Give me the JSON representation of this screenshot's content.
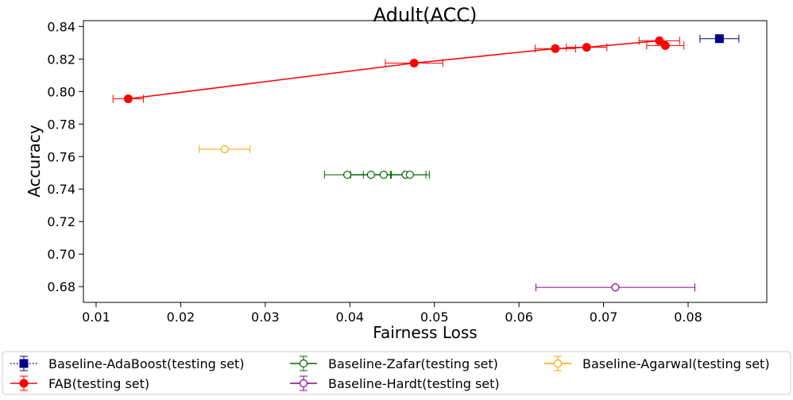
{
  "chart_data": {
    "type": "scatter",
    "title": "Adult(ACC)",
    "xlabel": "Fairness Loss",
    "ylabel": "Accuracy",
    "xlim": [
      0.0085,
      0.0893
    ],
    "ylim": [
      0.6703,
      0.8436
    ],
    "xticks": [
      0.01,
      0.02,
      0.03,
      0.04,
      0.05,
      0.06,
      0.07,
      0.08
    ],
    "xtick_labels": [
      "0.01",
      "0.02",
      "0.03",
      "0.04",
      "0.05",
      "0.06",
      "0.07",
      "0.08"
    ],
    "yticks": [
      0.68,
      0.7,
      0.72,
      0.74,
      0.76,
      0.78,
      0.8,
      0.82,
      0.84
    ],
    "ytick_labels": [
      "0.68",
      "0.70",
      "0.72",
      "0.74",
      "0.76",
      "0.78",
      "0.80",
      "0.82",
      "0.84"
    ],
    "grid": false,
    "legend_position": "below the plot, 3 columns",
    "series": [
      {
        "name": "Baseline-AdaBoost(testing set)",
        "color": "#00008b",
        "marker": "square-filled",
        "line": "dotted",
        "points": [
          {
            "x": 0.0837,
            "y": 0.8325,
            "xerr": 0.0023,
            "yerr": 0.001
          }
        ]
      },
      {
        "name": "FAB(testing set)",
        "color": "#ff0000",
        "marker": "circle-filled",
        "line": "solid",
        "points": [
          {
            "x": 0.0138,
            "y": 0.7955,
            "xerr": 0.0018,
            "yerr": 0.001
          },
          {
            "x": 0.0476,
            "y": 0.8175,
            "xerr": 0.0034,
            "yerr": 0.001
          },
          {
            "x": 0.0643,
            "y": 0.8264,
            "xerr": 0.0024,
            "yerr": 0.001
          },
          {
            "x": 0.068,
            "y": 0.8272,
            "xerr": 0.0024,
            "yerr": 0.001
          },
          {
            "x": 0.0773,
            "y": 0.8283,
            "xerr": 0.0022,
            "yerr": 0.001
          },
          {
            "x": 0.0766,
            "y": 0.8312,
            "xerr": 0.0024,
            "yerr": 0.001
          }
        ]
      },
      {
        "name": "Baseline-Zafar(testing set)",
        "color": "#006400",
        "marker": "circle-open",
        "line": "solid",
        "points": [
          {
            "x": 0.0397,
            "y": 0.7488,
            "xerr": 0.0027,
            "yerr": 0.0005
          },
          {
            "x": 0.0425,
            "y": 0.7488,
            "xerr": 0.0024,
            "yerr": 0.0005
          },
          {
            "x": 0.044,
            "y": 0.7488,
            "xerr": 0.0024,
            "yerr": 0.0005
          },
          {
            "x": 0.0466,
            "y": 0.7488,
            "xerr": 0.0024,
            "yerr": 0.0005
          },
          {
            "x": 0.0471,
            "y": 0.7488,
            "xerr": 0.0023,
            "yerr": 0.0005
          }
        ]
      },
      {
        "name": "Baseline-Hardt(testing set)",
        "color": "#8b008b",
        "marker": "circle-open",
        "line": "none",
        "points": [
          {
            "x": 0.0714,
            "y": 0.6795,
            "xerr": 0.0094,
            "yerr": 0.001
          }
        ]
      },
      {
        "name": "Baseline-Agarwal(testing set)",
        "color": "#ffa500",
        "marker": "circle-open",
        "line": "none",
        "points": [
          {
            "x": 0.0252,
            "y": 0.7645,
            "xerr": 0.003,
            "yerr": 0.001
          }
        ]
      }
    ]
  }
}
